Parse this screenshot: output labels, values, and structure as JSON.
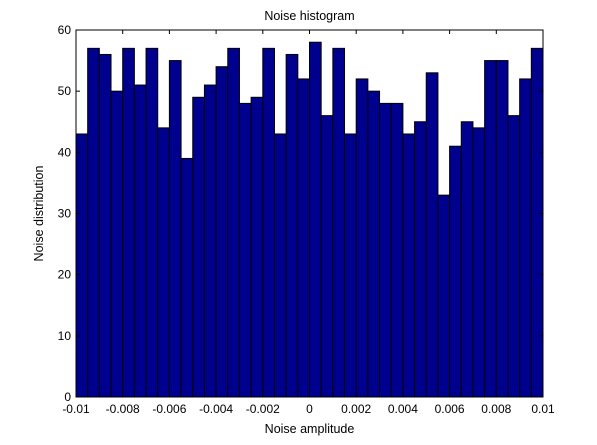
{
  "chart_data": {
    "type": "bar",
    "title": "Noise histogram",
    "xlabel": "Noise amplitude",
    "ylabel": "Noise distribution",
    "xlim": [
      -0.01,
      0.01
    ],
    "ylim": [
      0,
      60
    ],
    "xticks": [
      -0.01,
      -0.008,
      -0.006,
      -0.004,
      -0.002,
      0,
      0.002,
      0.004,
      0.006,
      0.008,
      0.01
    ],
    "xtick_labels": [
      "-0.01",
      "-0.008",
      "-0.006",
      "-0.004",
      "-0.002",
      "0",
      "0.002",
      "0.004",
      "0.006",
      "0.008",
      "0.01"
    ],
    "yticks": [
      0,
      10,
      20,
      30,
      40,
      50,
      60
    ],
    "ytick_labels": [
      "0",
      "10",
      "20",
      "30",
      "40",
      "50",
      "60"
    ],
    "bin_width": 0.0005,
    "bin_centers": [
      -0.00975,
      -0.00925,
      -0.00875,
      -0.00825,
      -0.00775,
      -0.00725,
      -0.00675,
      -0.00625,
      -0.00575,
      -0.00525,
      -0.00475,
      -0.00425,
      -0.00375,
      -0.00325,
      -0.00275,
      -0.00225,
      -0.00175,
      -0.00125,
      -0.00075,
      -0.00025,
      0.00025,
      0.00075,
      0.00125,
      0.00175,
      0.00225,
      0.00275,
      0.00325,
      0.00375,
      0.00425,
      0.00475,
      0.00525,
      0.00575,
      0.00625,
      0.00675,
      0.00725,
      0.00775,
      0.00825,
      0.00875,
      0.00925,
      0.00975
    ],
    "values": [
      43,
      57,
      56,
      50,
      57,
      51,
      57,
      44,
      55,
      39,
      49,
      51,
      54,
      57,
      48,
      49,
      57,
      43,
      56,
      52,
      58,
      46,
      57,
      43,
      52,
      50,
      48,
      48,
      43,
      45,
      53,
      33,
      41,
      45,
      44,
      55,
      55,
      46,
      52,
      57
    ],
    "bar_color": "#00008f",
    "edge_color": "#000000",
    "grid": false
  }
}
